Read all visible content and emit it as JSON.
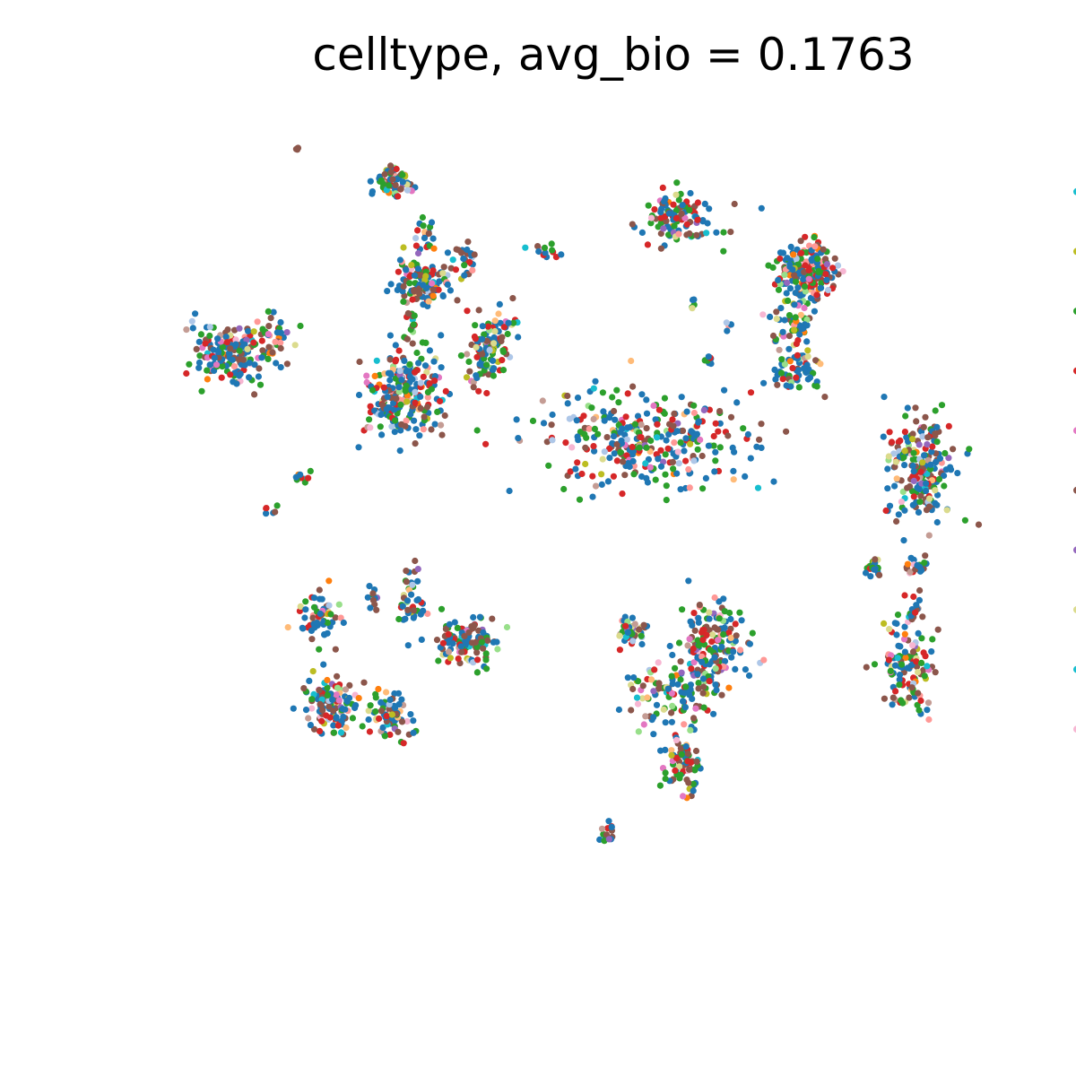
{
  "chart_data": {
    "type": "scatter",
    "title": "celltype, avg_bio = 0.1763",
    "xlabel": "",
    "ylabel": "",
    "grid": false,
    "axes_visible": false,
    "xlim": [
      0,
      100
    ],
    "ylim": [
      0,
      100
    ],
    "legend_position": "right (cut off at image edge, labels not visible)",
    "palette": [
      "#1f77b4",
      "#8c564b",
      "#2ca02c",
      "#d62728",
      "#e377c2",
      "#ff7f0e",
      "#aec7e8",
      "#98df8a",
      "#9467bd",
      "#17becf",
      "#dbdb8d",
      "#f7b6d2",
      "#c49c94",
      "#ffbb78",
      "#ff9896",
      "#bcbd22"
    ],
    "legend_markers": [
      {
        "color": "#17becf",
        "y": 91.8
      },
      {
        "color": "#bcbd22",
        "y": 84.4
      },
      {
        "color": "#2ca02c",
        "y": 77.0
      },
      {
        "color": "#d62728",
        "y": 69.6
      },
      {
        "color": "#e377c2",
        "y": 62.2
      },
      {
        "color": "#8c564b",
        "y": 54.8
      },
      {
        "color": "#9467bd",
        "y": 47.4
      },
      {
        "color": "#dbdb8d",
        "y": 40.0
      },
      {
        "color": "#17becf",
        "y": 32.6
      },
      {
        "color": "#f7b6d2",
        "y": 25.2
      }
    ],
    "clusters": [
      {
        "x": 10.0,
        "y": 97.0,
        "sx": 0.3,
        "sy": 0.3,
        "n": 4,
        "dominant": "#8c564b"
      },
      {
        "x": 22.0,
        "y": 93.0,
        "sx": 1.2,
        "sy": 1.0,
        "n": 70
      },
      {
        "x": 26.0,
        "y": 86.5,
        "sx": 0.6,
        "sy": 1.0,
        "n": 20
      },
      {
        "x": 25.8,
        "y": 80.5,
        "sx": 1.8,
        "sy": 1.4,
        "n": 120
      },
      {
        "x": 31.0,
        "y": 83.5,
        "sx": 0.8,
        "sy": 0.9,
        "n": 25
      },
      {
        "x": 41.0,
        "y": 84.5,
        "sx": 0.9,
        "sy": 0.4,
        "n": 15
      },
      {
        "x": 36.5,
        "y": 75.5,
        "sx": 0.8,
        "sy": 0.4,
        "n": 10
      },
      {
        "x": 57.5,
        "y": 88.5,
        "sx": 2.5,
        "sy": 1.6,
        "n": 110
      },
      {
        "x": 59.0,
        "y": 77.5,
        "sx": 0.3,
        "sy": 0.6,
        "n": 5
      },
      {
        "x": 63.5,
        "y": 75.0,
        "sx": 0.3,
        "sy": 0.3,
        "n": 4
      },
      {
        "x": 61.5,
        "y": 71.0,
        "sx": 0.5,
        "sy": 0.4,
        "n": 8
      },
      {
        "x": 73.5,
        "y": 82.0,
        "sx": 1.8,
        "sy": 1.8,
        "n": 220
      },
      {
        "x": 71.5,
        "y": 75.0,
        "sx": 1.5,
        "sy": 1.5,
        "n": 50
      },
      {
        "x": 72.0,
        "y": 69.5,
        "sx": 1.6,
        "sy": 1.4,
        "n": 60
      },
      {
        "x": 1.5,
        "y": 71.5,
        "sx": 2.2,
        "sy": 2.0,
        "n": 150
      },
      {
        "x": 7.5,
        "y": 73.5,
        "sx": 1.0,
        "sy": 1.6,
        "n": 40
      },
      {
        "x": 23.5,
        "y": 67.0,
        "sx": 2.6,
        "sy": 2.8,
        "n": 230
      },
      {
        "x": 24.3,
        "y": 74.0,
        "sx": 0.4,
        "sy": 1.8,
        "n": 15
      },
      {
        "x": 34.0,
        "y": 72.5,
        "sx": 1.3,
        "sy": 2.2,
        "n": 100
      },
      {
        "x": 53.5,
        "y": 61.0,
        "sx": 7.0,
        "sy": 3.0,
        "n": 320
      },
      {
        "x": 87.5,
        "y": 57.5,
        "sx": 2.0,
        "sy": 3.5,
        "n": 200
      },
      {
        "x": 10.5,
        "y": 56.5,
        "sx": 0.6,
        "sy": 0.6,
        "n": 12
      },
      {
        "x": 6.5,
        "y": 52.5,
        "sx": 0.4,
        "sy": 0.3,
        "n": 6
      },
      {
        "x": 13.0,
        "y": 39.0,
        "sx": 1.4,
        "sy": 1.8,
        "n": 60
      },
      {
        "x": 14.5,
        "y": 28.0,
        "sx": 1.6,
        "sy": 1.6,
        "n": 120
      },
      {
        "x": 21.5,
        "y": 27.0,
        "sx": 1.6,
        "sy": 1.5,
        "n": 70
      },
      {
        "x": 24.0,
        "y": 41.0,
        "sx": 0.8,
        "sy": 2.0,
        "n": 40
      },
      {
        "x": 31.0,
        "y": 36.0,
        "sx": 2.0,
        "sy": 1.4,
        "n": 120
      },
      {
        "x": 19.5,
        "y": 41.5,
        "sx": 0.4,
        "sy": 0.9,
        "n": 12
      },
      {
        "x": 51.5,
        "y": 37.5,
        "sx": 1.0,
        "sy": 1.0,
        "n": 40
      },
      {
        "x": 61.5,
        "y": 35.0,
        "sx": 2.0,
        "sy": 3.0,
        "n": 180
      },
      {
        "x": 56.0,
        "y": 29.5,
        "sx": 2.5,
        "sy": 2.0,
        "n": 90
      },
      {
        "x": 58.0,
        "y": 20.5,
        "sx": 1.2,
        "sy": 2.2,
        "n": 80
      },
      {
        "x": 48.5,
        "y": 12.0,
        "sx": 0.6,
        "sy": 0.8,
        "n": 15
      },
      {
        "x": 81.5,
        "y": 45.5,
        "sx": 0.6,
        "sy": 0.8,
        "n": 20
      },
      {
        "x": 86.5,
        "y": 45.5,
        "sx": 0.8,
        "sy": 0.6,
        "n": 25
      },
      {
        "x": 85.5,
        "y": 33.0,
        "sx": 1.5,
        "sy": 2.8,
        "n": 120
      },
      {
        "x": 86.5,
        "y": 40.5,
        "sx": 0.5,
        "sy": 1.3,
        "n": 15
      }
    ]
  }
}
